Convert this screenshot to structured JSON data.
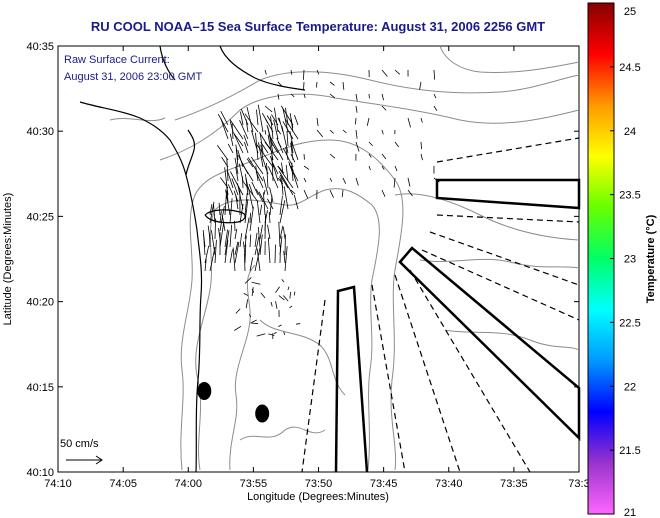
{
  "chart_data": {
    "type": "map",
    "title": "RU COOL  NOAA–15  Sea Surface Temperature:  August 31, 2006 2256 GMT",
    "subtitle_lines": [
      "Raw Surface Current:",
      "August 31, 2006 23:00 GMT"
    ],
    "xlabel": "Longitude (Degrees:Minutes)",
    "ylabel": "Latitude (Degrees:Minutes)",
    "x_ticks": [
      {
        "value": -74.1667,
        "label": "74:10"
      },
      {
        "value": -74.0833,
        "label": "74:05"
      },
      {
        "value": -74.0,
        "label": "74:00"
      },
      {
        "value": -73.9167,
        "label": "73:55"
      },
      {
        "value": -73.8333,
        "label": "73:50"
      },
      {
        "value": -73.75,
        "label": "73:45"
      },
      {
        "value": -73.6667,
        "label": "73:40"
      },
      {
        "value": -73.5833,
        "label": "73:35"
      },
      {
        "value": -73.5,
        "label": "73:3"
      }
    ],
    "y_ticks": [
      {
        "value": 40.1667,
        "label": "40:10"
      },
      {
        "value": 40.25,
        "label": "40:15"
      },
      {
        "value": 40.3333,
        "label": "40:20"
      },
      {
        "value": 40.4167,
        "label": "40:25"
      },
      {
        "value": 40.5,
        "label": "40:30"
      },
      {
        "value": 40.5833,
        "label": "40:35"
      }
    ],
    "xlim": [
      -74.1667,
      -73.5
    ],
    "ylim": [
      40.1667,
      40.5833
    ],
    "colorbar": {
      "label": "Temperature (°C)",
      "min": 21,
      "max": 25,
      "ticks": [
        "21",
        "21.5",
        "22",
        "22.5",
        "23",
        "23.5",
        "24",
        "24.5",
        "25"
      ],
      "colors": [
        "#ff66ff",
        "#9933cc",
        "#0000ff",
        "#0099ff",
        "#00ffff",
        "#00ff66",
        "#66ff00",
        "#ffff00",
        "#ff9900",
        "#ff0000",
        "#880000"
      ]
    },
    "scale_label": "50 cm/s",
    "markers": [
      {
        "name": "dot-1",
        "lon": -73.9795,
        "lat": 40.2459
      },
      {
        "name": "dot-2",
        "lon": -73.9054,
        "lat": 40.2239
      }
    ]
  }
}
